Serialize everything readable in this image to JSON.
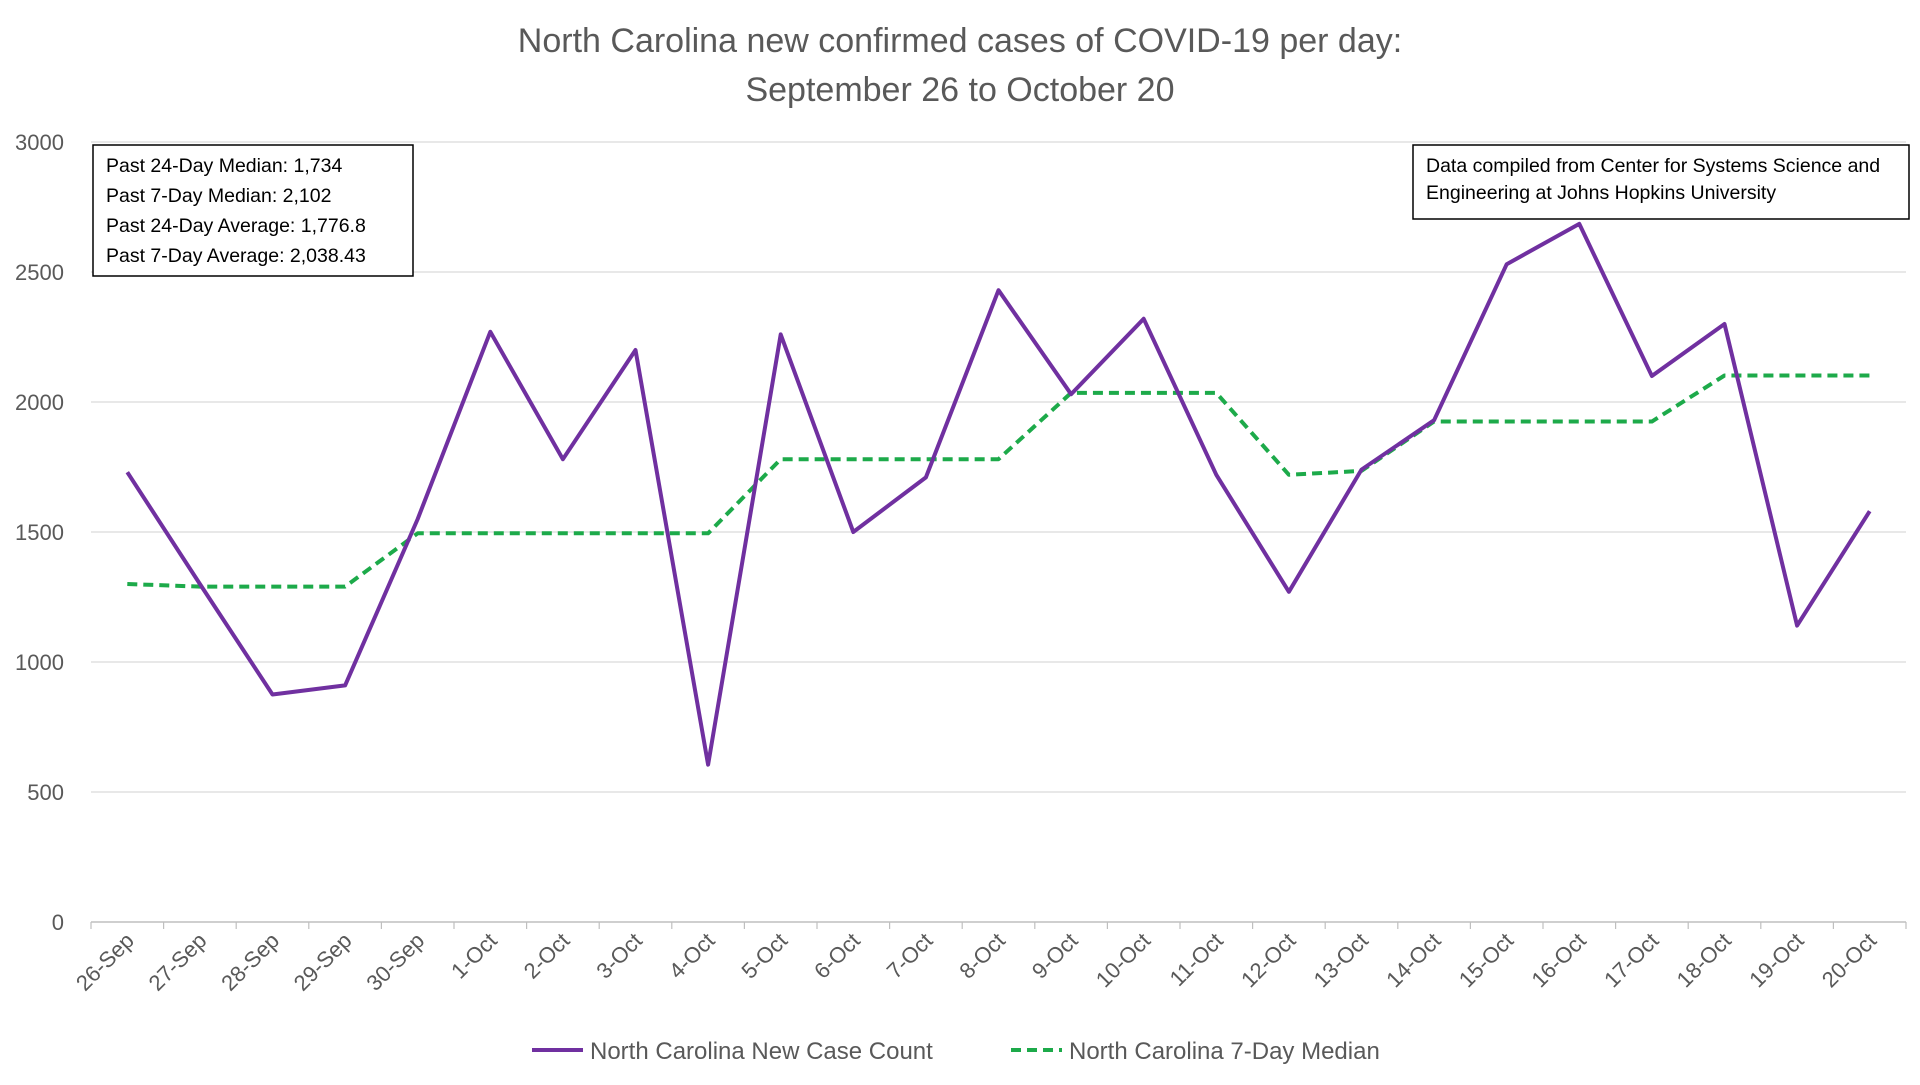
{
  "chart_data": {
    "type": "line",
    "title_lines": [
      "North Carolina new confirmed cases of COVID-19 per day:",
      "September 26 to October 20"
    ],
    "xlabel": "",
    "ylabel": "",
    "ylim": [
      0,
      3000
    ],
    "yticks": [
      "0",
      "500",
      "1000",
      "1500",
      "2000",
      "2500",
      "3000"
    ],
    "grid": "horizontal",
    "legend_position": "bottom",
    "categories": [
      "26-Sep",
      "27-Sep",
      "28-Sep",
      "29-Sep",
      "30-Sep",
      "1-Oct",
      "2-Oct",
      "3-Oct",
      "4-Oct",
      "5-Oct",
      "6-Oct",
      "7-Oct",
      "8-Oct",
      "9-Oct",
      "10-Oct",
      "11-Oct",
      "12-Oct",
      "13-Oct",
      "14-Oct",
      "15-Oct",
      "16-Oct",
      "17-Oct",
      "18-Oct",
      "19-Oct",
      "20-Oct"
    ],
    "series": [
      {
        "name": "North Carolina New Case Count",
        "color": "#7030a0",
        "style": "solid",
        "values": [
          1730,
          1300,
          875,
          910,
          1550,
          2270,
          1780,
          2200,
          605,
          2260,
          1500,
          1710,
          2430,
          2030,
          2320,
          1720,
          1270,
          1740,
          1930,
          2530,
          2685,
          2100,
          2300,
          1140,
          1580
        ]
      },
      {
        "name": "North Carolina 7-Day Median",
        "color": "#1daa4a",
        "style": "dashed",
        "values": [
          1300,
          1290,
          1290,
          1290,
          1495,
          1495,
          1495,
          1495,
          1495,
          1780,
          1780,
          1780,
          1780,
          2035,
          2035,
          2035,
          1720,
          1735,
          1925,
          1925,
          1925,
          1925,
          2102,
          2102,
          2102
        ]
      }
    ],
    "annotations": {
      "stats_box": [
        "Past 24-Day Median: 1,734",
        "Past 7-Day Median: 2,102",
        "Past 24-Day Average: 1,776.8",
        "Past 7-Day Average: 2,038.43"
      ],
      "source_box": [
        "Data compiled from Center for Systems Science and",
        "Engineering at Johns Hopkins University"
      ]
    }
  }
}
